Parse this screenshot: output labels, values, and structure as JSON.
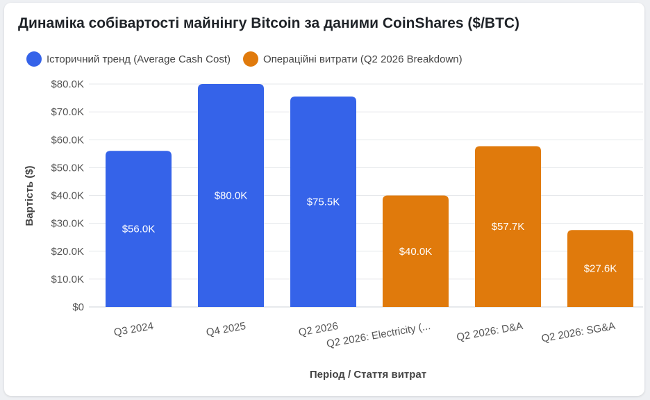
{
  "chart_data": {
    "type": "bar",
    "title": "Динаміка собівартості майнінгу Bitcoin за даними CoinShares ($/BTC)",
    "xlabel": "Період / Стаття витрат",
    "ylabel": "Вартість ($)",
    "ylim": [
      0,
      80000
    ],
    "yticks": [
      0,
      10000,
      20000,
      30000,
      40000,
      50000,
      60000,
      70000,
      80000
    ],
    "ytick_labels": [
      "$0",
      "$10.0K",
      "$20.0K",
      "$30.0K",
      "$40.0K",
      "$50.0K",
      "$60.0K",
      "$70.0K",
      "$80.0K"
    ],
    "grid": true,
    "legend_position": "top-left",
    "categories": [
      "Q3 2024",
      "Q4 2025",
      "Q2 2026",
      "Q2 2026: Electricity (...",
      "Q2 2026: D&A",
      "Q2 2026: SG&A"
    ],
    "series": [
      {
        "name": "Історичний тренд (Average Cash Cost)",
        "color": "#3563e9",
        "values": [
          56000,
          80000,
          75500,
          null,
          null,
          null
        ],
        "labels": [
          "$56.0K",
          "$80.0K",
          "$75.5K",
          null,
          null,
          null
        ]
      },
      {
        "name": "Операційні витрати (Q2 2026 Breakdown)",
        "color": "#e07a0c",
        "values": [
          null,
          null,
          null,
          40000,
          57700,
          27600
        ],
        "labels": [
          null,
          null,
          null,
          "$40.0K",
          "$57.7K",
          "$27.6K"
        ]
      }
    ]
  }
}
